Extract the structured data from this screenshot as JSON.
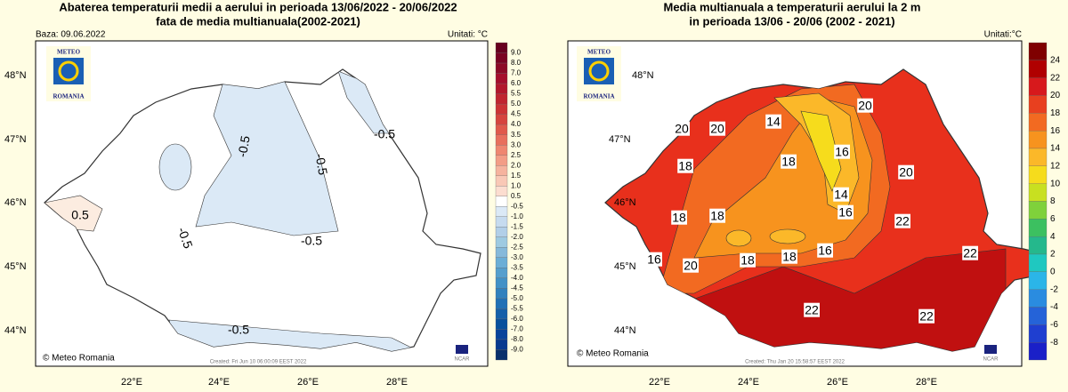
{
  "panels": [
    {
      "title": [
        "Abaterea temperaturii medii a aerului in perioada 13/06/2022 - 20/06/2022",
        "fata de media multianuala(2002-2021)"
      ],
      "base": "Baza: 09.06.2022",
      "units": "Unitati: °C",
      "lat_labels": [
        "48°N",
        "47°N",
        "46°N",
        "45°N",
        "44°N"
      ],
      "lon_labels": [
        "22°E",
        "24°E",
        "26°E",
        "28°E"
      ],
      "logo": [
        "METEO",
        "ROMANIA"
      ],
      "footer": [
        "© Meteo Romania",
        "Created: Fri Jun 10 06:00:09 EEST 2022",
        "NCAR"
      ],
      "contour_labels": [
        "-0.5",
        "-0.5",
        "-0.5",
        "-0.5",
        "-0.5",
        "-0.5",
        "0.5"
      ],
      "colorbar": {
        "labels": [
          "9.0",
          "8.0",
          "7.0",
          "6.0",
          "5.5",
          "5.0",
          "4.5",
          "4.0",
          "3.5",
          "3.0",
          "2.5",
          "2.0",
          "1.5",
          "1.0",
          "0.5",
          "-0.5",
          "-1.0",
          "-1.5",
          "-2.0",
          "-2.5",
          "-3.0",
          "-3.5",
          "-4.0",
          "-4.5",
          "-5.0",
          "-5.5",
          "-6.0",
          "-7.0",
          "-8.0",
          "-9.0"
        ],
        "colors": [
          "#67001f",
          "#7a0322",
          "#8c0a26",
          "#a50f2b",
          "#b2182b",
          "#c0262f",
          "#cc3434",
          "#d6453d",
          "#e05a4a",
          "#e8705c",
          "#ef8770",
          "#f39d86",
          "#f6b39e",
          "#f9c8b6",
          "#fcddd0",
          "#ffffff",
          "#dbe9f6",
          "#c6dbef",
          "#b2cfe8",
          "#9ecae1",
          "#86b9da",
          "#6baed6",
          "#559fcd",
          "#4292c6",
          "#3182bd",
          "#2171b5",
          "#1561a9",
          "#08519c",
          "#08449a",
          "#083a8f",
          "#08306b"
        ]
      }
    },
    {
      "title": [
        "Media multianuala a temperaturii aerului la 2 m",
        "in perioada 13/06 - 20/06 (2002 - 2021)"
      ],
      "units": "Unitati:°C",
      "lat_labels": [
        "48°N",
        "47°N",
        "46°N",
        "45°N",
        "44°N"
      ],
      "lon_labels": [
        "22°E",
        "24°E",
        "26°E",
        "28°E"
      ],
      "logo": [
        "METEO",
        "ROMANIA"
      ],
      "footer": [
        "© Meteo Romania",
        "Created: Thu Jan 20 15:58:57 EEST 2022",
        "NCAR"
      ],
      "contour_labels": [
        "20",
        "20",
        "14",
        "20",
        "16",
        "18",
        "18",
        "14",
        "20",
        "18",
        "18",
        "16",
        "16",
        "20",
        "18",
        "18",
        "16",
        "22",
        "22",
        "22",
        "22"
      ],
      "colorbar": {
        "labels": [
          "24",
          "22",
          "20",
          "18",
          "16",
          "14",
          "12",
          "10",
          "8",
          "6",
          "4",
          "2",
          "0",
          "-2",
          "-4",
          "-6",
          "-8"
        ],
        "colors": [
          "#7f0000",
          "#b00000",
          "#d7191c",
          "#e8401f",
          "#f26a21",
          "#f7931e",
          "#fbb829",
          "#f6dc1c",
          "#c8e020",
          "#7fd13b",
          "#3cc060",
          "#25b88c",
          "#1fc8c0",
          "#2bb5e8",
          "#2a8ce0",
          "#2563d8",
          "#1f3fd0",
          "#1a20c8"
        ]
      }
    }
  ]
}
